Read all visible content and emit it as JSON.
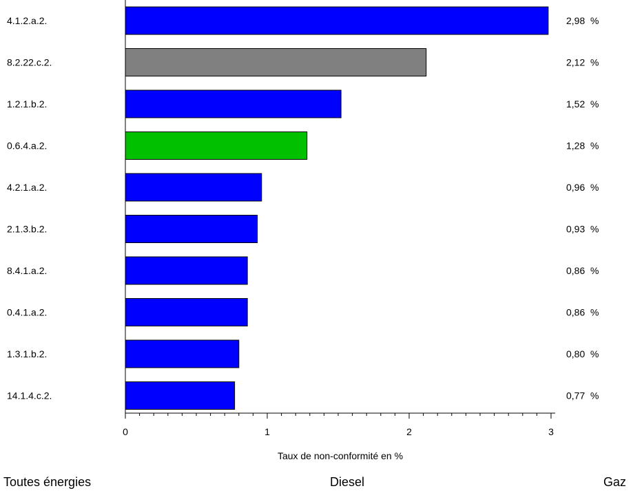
{
  "chart_data": {
    "type": "bar",
    "orientation": "horizontal",
    "categories": [
      "4.1.2.a.2.",
      "8.2.22.c.2.",
      "1.2.1.b.2.",
      "0.6.4.a.2.",
      "4.2.1.a.2.",
      "2.1.3.b.2.",
      "8.4.1.a.2.",
      "0.4.1.a.2.",
      "1.3.1.b.2.",
      "14.1.4.c.2."
    ],
    "values": [
      2.98,
      2.12,
      1.52,
      1.28,
      0.96,
      0.93,
      0.86,
      0.86,
      0.8,
      0.77
    ],
    "value_labels": [
      "2,98",
      "2,12",
      "1,52",
      "1,28",
      "0,96",
      "0,93",
      "0,86",
      "0,86",
      "0,80",
      "0,77"
    ],
    "value_unit": "%",
    "bar_series": [
      "Toutes énergies",
      "Diesel",
      "Toutes énergies",
      "Gaz",
      "Toutes énergies",
      "Toutes énergies",
      "Toutes énergies",
      "Toutes énergies",
      "Toutes énergies",
      "Toutes énergies"
    ],
    "xlabel": "Taux de non-conformité en %",
    "ylabel": "",
    "xlim": [
      0,
      3
    ],
    "xticks": [
      "0",
      "1",
      "2",
      "3"
    ],
    "grid": false,
    "legend_placement": "bottom",
    "legend": [
      {
        "name": "Toutes énergies",
        "color": "#0000ff"
      },
      {
        "name": "Diesel",
        "color": "#808080"
      },
      {
        "name": "Gaz",
        "color": "#00c000"
      }
    ]
  }
}
